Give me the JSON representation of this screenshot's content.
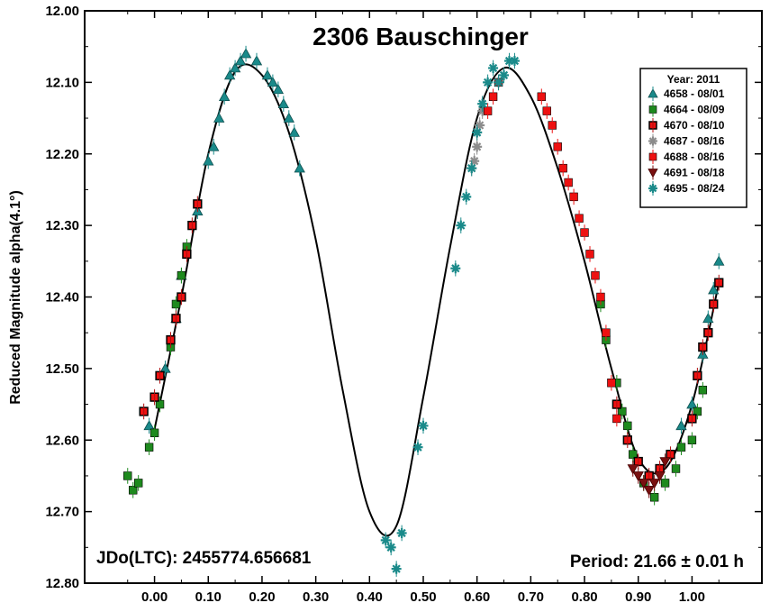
{
  "chart_data": {
    "type": "scatter",
    "title": "2306 Bauschinger",
    "ylabel": "Reduced Magnitude alpha(4.1°)",
    "xlabel": "",
    "xlim": [
      -0.13,
      1.13
    ],
    "ylim": [
      12.8,
      12.0
    ],
    "xticks": [
      "0.00",
      "0.10",
      "0.20",
      "0.30",
      "0.40",
      "0.50",
      "0.60",
      "0.70",
      "0.80",
      "0.90",
      "1.00"
    ],
    "yticks": [
      "12.00",
      "12.10",
      "12.20",
      "12.30",
      "12.40",
      "12.50",
      "12.60",
      "12.70",
      "12.80"
    ],
    "annotations": {
      "epoch": "JDo(LTC): 2455774.656681",
      "period": "Period: 21.66 ± 0.01 h"
    },
    "legend": {
      "title": "Year: 2011",
      "placement": "top-right"
    },
    "fit_curve": {
      "x": [
        0.0,
        0.05,
        0.1,
        0.15,
        0.2,
        0.25,
        0.3,
        0.35,
        0.4,
        0.45,
        0.5,
        0.55,
        0.6,
        0.65,
        0.7,
        0.75,
        0.8,
        0.85,
        0.9,
        0.95,
        1.0,
        1.05
      ],
      "y": [
        12.585,
        12.4,
        12.2,
        12.085,
        12.09,
        12.17,
        12.32,
        12.53,
        12.7,
        12.72,
        12.54,
        12.33,
        12.15,
        12.08,
        12.12,
        12.22,
        12.35,
        12.5,
        12.625,
        12.64,
        12.55,
        12.38
      ]
    },
    "series": [
      {
        "name": "4658 - 08/01",
        "marker": "triangle",
        "color": "#1a8a8a",
        "x": [
          -0.01,
          0.02,
          0.04,
          0.05,
          0.08,
          0.1,
          0.11,
          0.12,
          0.13,
          0.14,
          0.15,
          0.16,
          0.17,
          0.19,
          0.21,
          0.22,
          0.23,
          0.24,
          0.25,
          0.26,
          0.27,
          0.98,
          1.0,
          1.02,
          1.03,
          1.04,
          1.05
        ],
        "y": [
          12.58,
          12.5,
          12.43,
          12.37,
          12.28,
          12.21,
          12.19,
          12.15,
          12.12,
          12.09,
          12.08,
          12.07,
          12.06,
          12.07,
          12.09,
          12.1,
          12.11,
          12.13,
          12.15,
          12.17,
          12.22,
          12.58,
          12.55,
          12.48,
          12.43,
          12.39,
          12.35
        ]
      },
      {
        "name": "4664 - 08/09",
        "marker": "square",
        "color": "#1e8a1e",
        "x": [
          -0.05,
          -0.04,
          -0.03,
          -0.01,
          0.0,
          0.01,
          0.03,
          0.04,
          0.05,
          0.06,
          0.83,
          0.84,
          0.86,
          0.87,
          0.88,
          0.89,
          0.91,
          0.93,
          0.95,
          0.97,
          0.98,
          1.0,
          1.01,
          1.02
        ],
        "y": [
          12.65,
          12.67,
          12.66,
          12.61,
          12.59,
          12.55,
          12.47,
          12.41,
          12.37,
          12.33,
          12.41,
          12.46,
          12.52,
          12.56,
          12.58,
          12.62,
          12.66,
          12.68,
          12.66,
          12.64,
          12.61,
          12.6,
          12.56,
          12.53
        ]
      },
      {
        "name": "4670 - 08/10",
        "marker": "square-outline",
        "color": "#b01010",
        "x": [
          -0.02,
          0.0,
          0.01,
          0.03,
          0.04,
          0.05,
          0.06,
          0.07,
          0.08,
          0.86,
          0.88,
          0.9,
          0.92,
          0.94,
          0.96,
          1.0,
          1.01,
          1.02,
          1.03,
          1.04,
          1.05
        ],
        "y": [
          12.56,
          12.54,
          12.51,
          12.46,
          12.43,
          12.4,
          12.34,
          12.3,
          12.27,
          12.55,
          12.6,
          12.63,
          12.65,
          12.64,
          12.62,
          12.57,
          12.51,
          12.47,
          12.45,
          12.41,
          12.38
        ]
      },
      {
        "name": "4687 - 08/16",
        "marker": "star",
        "color": "#8c8c8c",
        "x": [
          0.59,
          0.595,
          0.6,
          0.6,
          0.605,
          0.61
        ],
        "y": [
          12.22,
          12.21,
          12.19,
          12.17,
          12.16,
          12.14
        ]
      },
      {
        "name": "4688 - 08/16",
        "marker": "square",
        "color": "#ee1111",
        "x": [
          0.62,
          0.63,
          0.64,
          0.72,
          0.73,
          0.74,
          0.75,
          0.76,
          0.77,
          0.78,
          0.79,
          0.8,
          0.81,
          0.82,
          0.83,
          0.84,
          0.85,
          0.86
        ],
        "y": [
          12.14,
          12.12,
          12.1,
          12.12,
          12.14,
          12.16,
          12.19,
          12.22,
          12.24,
          12.26,
          12.29,
          12.31,
          12.34,
          12.37,
          12.4,
          12.45,
          12.52,
          12.57
        ]
      },
      {
        "name": "4691 - 08/18",
        "marker": "triangle-down",
        "color": "#7a1010",
        "x": [
          0.89,
          0.9,
          0.91,
          0.92,
          0.93,
          0.94,
          0.95
        ],
        "y": [
          12.64,
          12.65,
          12.66,
          12.67,
          12.66,
          12.65,
          12.63
        ]
      },
      {
        "name": "4695 - 08/24",
        "marker": "star",
        "color": "#1a8a8a",
        "x": [
          0.43,
          0.44,
          0.45,
          0.46,
          0.49,
          0.5,
          0.56,
          0.57,
          0.58,
          0.59,
          0.6,
          0.61,
          0.62,
          0.63,
          0.64,
          0.65,
          0.66,
          0.67
        ],
        "y": [
          12.74,
          12.75,
          12.78,
          12.73,
          12.61,
          12.58,
          12.36,
          12.3,
          12.26,
          12.22,
          12.17,
          12.13,
          12.1,
          12.08,
          12.1,
          12.09,
          12.07,
          12.07
        ]
      }
    ]
  }
}
